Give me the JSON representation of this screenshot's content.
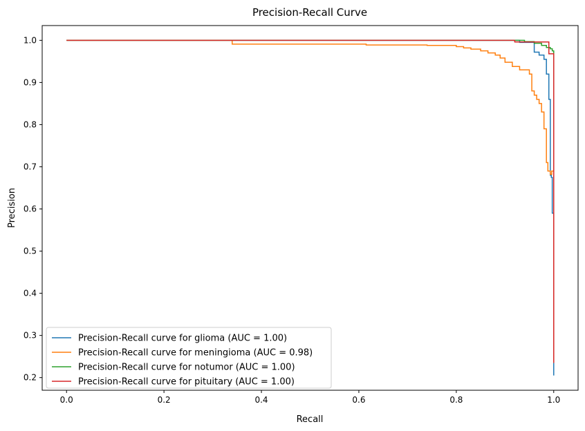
{
  "chart_data": {
    "type": "line",
    "title": "Precision-Recall Curve",
    "xlabel": "Recall",
    "ylabel": "Precision",
    "xlim": [
      -0.05,
      1.05
    ],
    "ylim": [
      0.17,
      1.035
    ],
    "xticks": [
      0.0,
      0.2,
      0.4,
      0.6,
      0.8,
      1.0
    ],
    "xtick_labels": [
      "0.0",
      "0.2",
      "0.4",
      "0.6",
      "0.8",
      "1.0"
    ],
    "yticks": [
      0.2,
      0.3,
      0.4,
      0.5,
      0.6,
      0.7,
      0.8,
      0.9,
      1.0
    ],
    "ytick_labels": [
      "0.2",
      "0.3",
      "0.4",
      "0.5",
      "0.6",
      "0.7",
      "0.8",
      "0.9",
      "1.0"
    ],
    "grid": false,
    "legend_position": "bottom-left",
    "series": [
      {
        "name": "Precision-Recall curve for glioma (AUC = 1.00)",
        "color": "#1f77b4",
        "x": [
          0.0,
          0.93,
          0.93,
          0.96,
          0.96,
          0.97,
          0.97,
          0.98,
          0.98,
          0.985,
          0.985,
          0.99,
          0.99,
          0.993,
          0.993,
          0.995,
          0.995,
          0.997,
          0.997,
          1.0,
          1.0
        ],
        "y": [
          1.0,
          1.0,
          0.995,
          0.995,
          0.972,
          0.972,
          0.965,
          0.965,
          0.955,
          0.955,
          0.92,
          0.92,
          0.86,
          0.86,
          0.68,
          0.68,
          0.675,
          0.675,
          0.59,
          0.59,
          0.205
        ]
      },
      {
        "name": "Precision-Recall curve for meningioma (AUC = 0.98)",
        "color": "#ff7f0e",
        "x": [
          0.0,
          0.34,
          0.34,
          0.615,
          0.615,
          0.74,
          0.74,
          0.8,
          0.8,
          0.815,
          0.815,
          0.83,
          0.83,
          0.85,
          0.85,
          0.865,
          0.865,
          0.88,
          0.88,
          0.89,
          0.89,
          0.9,
          0.9,
          0.915,
          0.915,
          0.93,
          0.93,
          0.95,
          0.95,
          0.955,
          0.955,
          0.96,
          0.96,
          0.965,
          0.965,
          0.97,
          0.97,
          0.975,
          0.975,
          0.98,
          0.98,
          0.985,
          0.985,
          0.988,
          0.988,
          0.99,
          0.99,
          0.993,
          0.993,
          0.996,
          0.996,
          0.998,
          0.998,
          1.0,
          1.0
        ],
        "y": [
          1.0,
          1.0,
          0.991,
          0.991,
          0.989,
          0.989,
          0.988,
          0.988,
          0.985,
          0.985,
          0.982,
          0.982,
          0.979,
          0.979,
          0.975,
          0.975,
          0.97,
          0.97,
          0.965,
          0.965,
          0.958,
          0.958,
          0.948,
          0.948,
          0.938,
          0.938,
          0.93,
          0.93,
          0.92,
          0.92,
          0.88,
          0.88,
          0.87,
          0.87,
          0.86,
          0.86,
          0.85,
          0.85,
          0.83,
          0.83,
          0.79,
          0.79,
          0.71,
          0.71,
          0.69,
          0.69,
          0.69,
          0.69,
          0.682,
          0.682,
          0.69,
          0.69,
          0.69,
          0.69,
          0.235
        ]
      },
      {
        "name": "Precision-Recall curve for notumor (AUC = 1.00)",
        "color": "#2ca02c",
        "x": [
          0.0,
          0.94,
          0.94,
          0.96,
          0.96,
          0.975,
          0.975,
          0.985,
          0.985,
          0.993,
          0.993,
          0.997,
          0.997,
          1.0,
          1.0
        ],
        "y": [
          1.0,
          1.0,
          0.997,
          0.997,
          0.993,
          0.993,
          0.988,
          0.988,
          0.983,
          0.983,
          0.98,
          0.98,
          0.975,
          0.975,
          0.69
        ]
      },
      {
        "name": "Precision-Recall curve for pituitary (AUC = 1.00)",
        "color": "#d62728",
        "x": [
          0.0,
          0.92,
          0.92,
          0.99,
          0.99,
          1.0,
          1.0
        ],
        "y": [
          1.0,
          1.0,
          0.996,
          0.996,
          0.968,
          0.968,
          0.235
        ]
      }
    ]
  }
}
